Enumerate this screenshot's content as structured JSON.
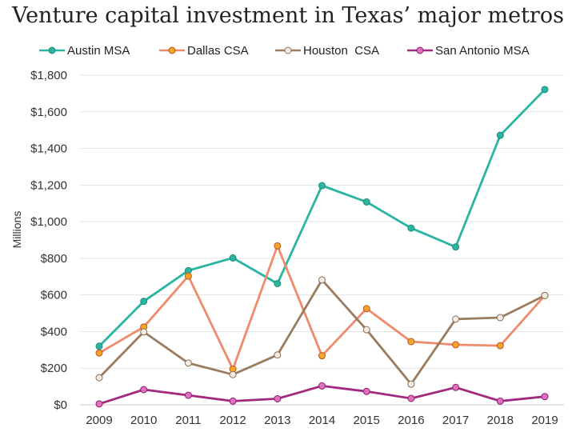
{
  "chart_data": {
    "type": "line",
    "title": "Venture capital investment in Texas’ major metros",
    "xlabel": "",
    "ylabel": "Millions",
    "x": [
      "2009",
      "2010",
      "2011",
      "2012",
      "2013",
      "2014",
      "2015",
      "2016",
      "2017",
      "2018",
      "2019"
    ],
    "ylim": [
      0,
      1800
    ],
    "yticks": [
      0,
      200,
      400,
      600,
      800,
      1000,
      1200,
      1400,
      1600,
      1800
    ],
    "ytick_labels": [
      "$0",
      "$200",
      "$400",
      "$600",
      "$800",
      "$1,000",
      "$1,200",
      "$1,400",
      "$1,600",
      "$1,800"
    ],
    "grid": true,
    "legend_position": "top",
    "series": [
      {
        "name": "Austin MSA",
        "color": "#2bb4a0",
        "marker_fill": "#2bb4a0",
        "marker_stroke": "#1f8f7f",
        "values": [
          320,
          565,
          733,
          802,
          662,
          1197,
          1108,
          965,
          862,
          1472,
          1722
        ]
      },
      {
        "name": "Dallas CSA",
        "color": "#f08a6c",
        "marker_fill": "#f5a623",
        "marker_stroke": "#b5562f",
        "values": [
          283,
          425,
          703,
          195,
          868,
          268,
          525,
          345,
          328,
          323,
          597
        ]
      },
      {
        "name": "Houston  CSA",
        "color": "#9a7c60",
        "marker_fill": "#f2ece4",
        "marker_stroke": "#8a6d52",
        "values": [
          148,
          398,
          228,
          165,
          272,
          682,
          410,
          113,
          468,
          476,
          597
        ]
      },
      {
        "name": "San Antonio MSA",
        "color": "#a3287f",
        "marker_fill": "#e070c0",
        "marker_stroke": "#8a1f6b",
        "values": [
          5,
          83,
          52,
          20,
          33,
          103,
          73,
          35,
          95,
          20,
          45
        ]
      }
    ]
  }
}
